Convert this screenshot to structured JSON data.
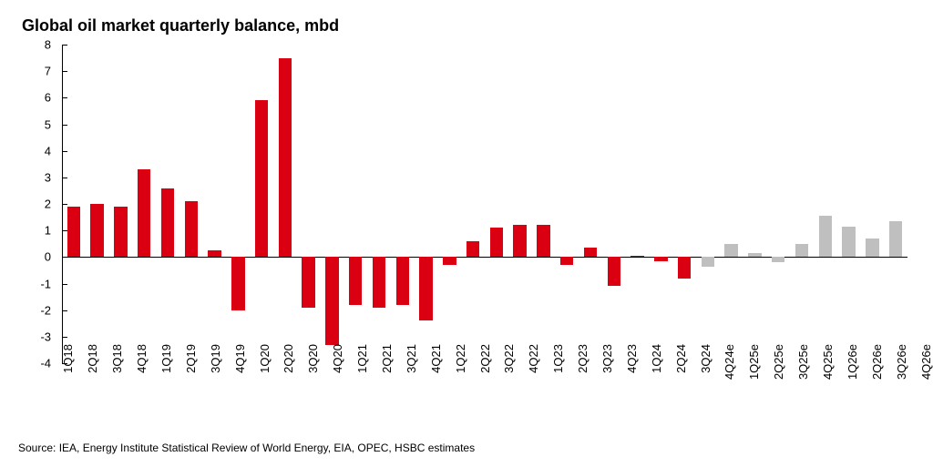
{
  "chart": {
    "type": "bar",
    "title": "Global oil market quarterly balance, mbd",
    "title_fontsize": 18,
    "title_fontweight": 700,
    "background_color": "#ffffff",
    "axis_color": "#000000",
    "label_fontsize": 13,
    "ylim": [
      -4,
      8
    ],
    "ytick_step": 1,
    "bar_width_ratio": 0.56,
    "colors": {
      "historical": "#db0011",
      "estimate": "#bfbfbf"
    },
    "categories": [
      "1Q18",
      "2Q18",
      "3Q18",
      "4Q18",
      "1Q19",
      "2Q19",
      "3Q19",
      "4Q19",
      "1Q20",
      "2Q20",
      "3Q20",
      "4Q20",
      "1Q21",
      "2Q21",
      "3Q21",
      "4Q21",
      "1Q22",
      "2Q22",
      "3Q22",
      "4Q22",
      "1Q23",
      "2Q23",
      "3Q23",
      "4Q23",
      "1Q24",
      "2Q24",
      "3Q24",
      "4Q24e",
      "1Q25e",
      "2Q25e",
      "3Q25e",
      "4Q25e",
      "1Q26e",
      "2Q26e",
      "3Q26e",
      "4Q26e"
    ],
    "values": [
      1.9,
      2.0,
      1.9,
      3.3,
      2.6,
      2.1,
      0.25,
      -2.0,
      5.9,
      7.5,
      -1.9,
      -3.3,
      -1.8,
      -1.9,
      -1.8,
      -2.4,
      -0.3,
      0.6,
      1.1,
      1.2,
      1.2,
      -0.3,
      0.35,
      -1.1,
      0.05,
      -0.15,
      -0.8,
      -0.35,
      0.5,
      0.15,
      -0.2,
      0.5,
      1.55,
      1.15,
      0.7,
      1.35
    ],
    "series": [
      "historical",
      "historical",
      "historical",
      "historical",
      "historical",
      "historical",
      "historical",
      "historical",
      "historical",
      "historical",
      "historical",
      "historical",
      "historical",
      "historical",
      "historical",
      "historical",
      "historical",
      "historical",
      "historical",
      "historical",
      "historical",
      "historical",
      "historical",
      "historical",
      "historical",
      "historical",
      "historical",
      "estimate",
      "estimate",
      "estimate",
      "estimate",
      "estimate",
      "estimate",
      "estimate",
      "estimate",
      "estimate"
    ],
    "source": "Source: IEA, Energy Institute Statistical Review of World Energy, EIA, OPEC, HSBC estimates",
    "source_fontsize": 12
  }
}
